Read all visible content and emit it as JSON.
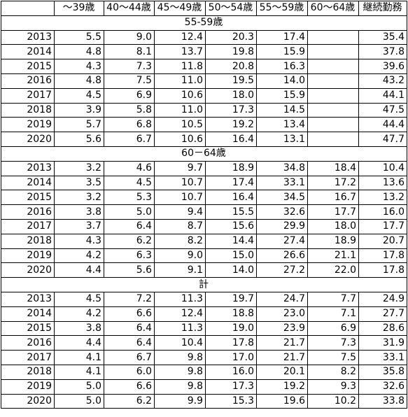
{
  "headers": [
    "",
    "～39歳",
    "40～44歳",
    "45～49歳",
    "50～54歳",
    "55～59歳",
    "60～64歳",
    "継続勤務"
  ],
  "sections": [
    {
      "title": "55-59歳",
      "rows": [
        {
          "year": "2013",
          "values": [
            "5.5",
            "9.0",
            "12.4",
            "20.3",
            "17.4",
            "",
            "35.4"
          ]
        },
        {
          "year": "2014",
          "values": [
            "4.8",
            "8.1",
            "13.7",
            "19.8",
            "15.9",
            "",
            "37.8"
          ]
        },
        {
          "year": "2015",
          "values": [
            "4.3",
            "7.3",
            "11.8",
            "20.8",
            "16.3",
            "",
            "39.6"
          ]
        },
        {
          "year": "2016",
          "values": [
            "4.8",
            "7.5",
            "11.0",
            "19.5",
            "14.0",
            "",
            "43.2"
          ]
        },
        {
          "year": "2017",
          "values": [
            "4.5",
            "6.9",
            "10.6",
            "18.0",
            "15.9",
            "",
            "44.1"
          ]
        },
        {
          "year": "2018",
          "values": [
            "3.9",
            "5.8",
            "11.0",
            "17.3",
            "14.5",
            "",
            "47.5"
          ]
        },
        {
          "year": "2019",
          "values": [
            "5.7",
            "6.8",
            "10.5",
            "19.2",
            "13.4",
            "",
            "44.4"
          ]
        },
        {
          "year": "2020",
          "values": [
            "5.6",
            "6.7",
            "10.6",
            "16.4",
            "13.1",
            "",
            "47.7"
          ]
        }
      ]
    },
    {
      "title": "60－64歳",
      "rows": [
        {
          "year": "2013",
          "values": [
            "3.2",
            "4.6",
            "9.7",
            "18.9",
            "34.8",
            "18.4",
            "10.4"
          ]
        },
        {
          "year": "2014",
          "values": [
            "3.5",
            "4.5",
            "10.7",
            "17.4",
            "33.1",
            "17.2",
            "13.6"
          ]
        },
        {
          "year": "2015",
          "values": [
            "3.2",
            "5.3",
            "10.7",
            "16.4",
            "34.5",
            "16.7",
            "13.2"
          ]
        },
        {
          "year": "2016",
          "values": [
            "3.8",
            "5.0",
            "9.4",
            "15.5",
            "32.6",
            "17.7",
            "16.0"
          ]
        },
        {
          "year": "2017",
          "values": [
            "3.7",
            "6.4",
            "8.7",
            "15.6",
            "29.9",
            "18.0",
            "17.7"
          ]
        },
        {
          "year": "2018",
          "values": [
            "4.3",
            "6.2",
            "8.2",
            "14.4",
            "27.4",
            "18.9",
            "20.7"
          ]
        },
        {
          "year": "2019",
          "values": [
            "4.2",
            "6.3",
            "9.0",
            "15.0",
            "26.6",
            "21.1",
            "17.8"
          ]
        },
        {
          "year": "2020",
          "values": [
            "4.4",
            "5.6",
            "9.1",
            "14.0",
            "27.2",
            "22.0",
            "17.8"
          ]
        }
      ]
    },
    {
      "title": "計",
      "rows": [
        {
          "year": "2013",
          "values": [
            "4.5",
            "7.2",
            "11.3",
            "19.7",
            "24.7",
            "7.7",
            "24.9"
          ]
        },
        {
          "year": "2014",
          "values": [
            "4.2",
            "6.6",
            "12.4",
            "18.8",
            "23.0",
            "7.1",
            "27.7"
          ]
        },
        {
          "year": "2015",
          "values": [
            "3.8",
            "6.4",
            "11.3",
            "19.0",
            "23.9",
            "6.9",
            "28.6"
          ]
        },
        {
          "year": "2016",
          "values": [
            "4.4",
            "6.4",
            "10.4",
            "17.8",
            "21.7",
            "7.3",
            "31.9"
          ]
        },
        {
          "year": "2017",
          "values": [
            "4.1",
            "6.7",
            "9.8",
            "17.0",
            "21.7",
            "7.5",
            "33.1"
          ]
        },
        {
          "year": "2018",
          "values": [
            "4.1",
            "6.0",
            "9.8",
            "16.0",
            "20.1",
            "8.2",
            "35.8"
          ]
        },
        {
          "year": "2019",
          "values": [
            "5.0",
            "6.6",
            "9.8",
            "17.3",
            "19.2",
            "9.3",
            "32.6"
          ]
        },
        {
          "year": "2020",
          "values": [
            "5.0",
            "6.2",
            "9.9",
            "15.3",
            "19.6",
            "10.2",
            "33.8"
          ]
        }
      ]
    }
  ]
}
